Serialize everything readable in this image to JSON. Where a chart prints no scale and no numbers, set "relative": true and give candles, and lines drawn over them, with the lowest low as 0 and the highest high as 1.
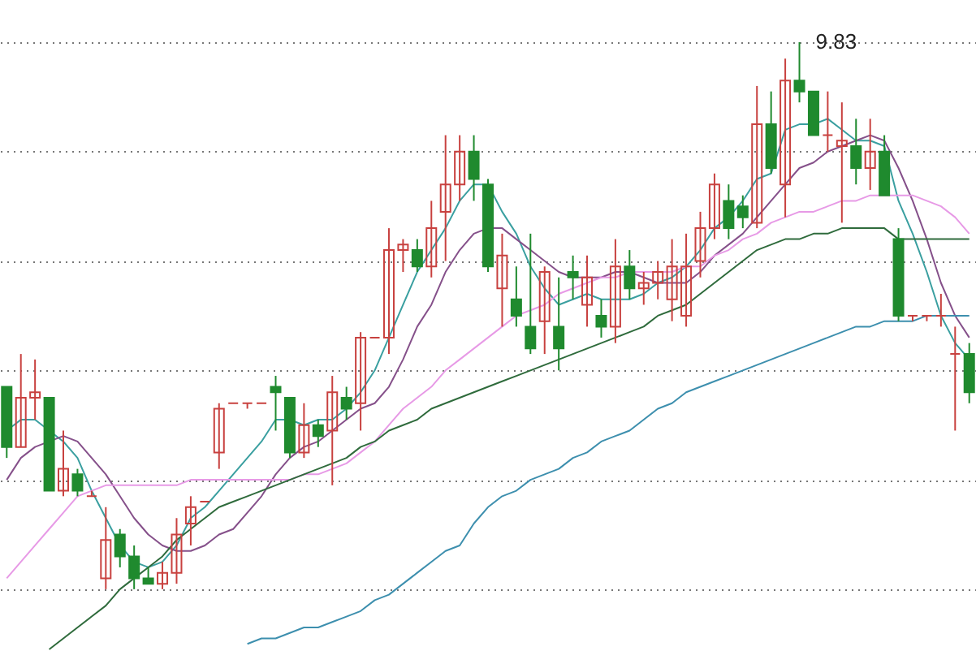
{
  "chart_data": {
    "type": "candlestick",
    "relative": true,
    "grid": true,
    "tick_labels": false,
    "categories": [
      null,
      null,
      null,
      null,
      null,
      null,
      null,
      null,
      null,
      null,
      null,
      null,
      null,
      null,
      null,
      null,
      null,
      null,
      null,
      null,
      null,
      null,
      null,
      null,
      null,
      null,
      null,
      null,
      null,
      null,
      null,
      null,
      null,
      null,
      null,
      null,
      null,
      null,
      null,
      null,
      null,
      null,
      null,
      null,
      null,
      null,
      null,
      null,
      null,
      null,
      null,
      null,
      null,
      null,
      null,
      null,
      null,
      null,
      null,
      null,
      null,
      null,
      null,
      null,
      null,
      null,
      null,
      null,
      null
    ],
    "ohlc": [
      [
        0.37,
        0.37,
        0.24,
        0.26
      ],
      [
        0.26,
        0.43,
        0.26,
        0.35
      ],
      [
        0.35,
        0.42,
        0.31,
        0.36
      ],
      [
        0.35,
        0.35,
        0.18,
        0.18
      ],
      [
        0.18,
        0.29,
        0.17,
        0.22
      ],
      [
        0.21,
        0.22,
        0.17,
        0.18
      ],
      [
        0.17,
        0.18,
        0.17,
        0.17
      ],
      [
        0.02,
        0.15,
        0.0,
        0.09
      ],
      [
        0.1,
        0.11,
        0.04,
        0.06
      ],
      [
        0.06,
        0.08,
        0.0,
        0.02
      ],
      [
        0.02,
        0.04,
        0.01,
        0.01
      ],
      [
        0.01,
        0.05,
        0.0,
        0.03
      ],
      [
        0.03,
        0.13,
        0.01,
        0.1
      ],
      [
        0.12,
        0.17,
        0.08,
        0.15
      ],
      [
        0.16,
        0.16,
        0.16,
        0.16
      ],
      [
        0.25,
        0.34,
        0.22,
        0.33
      ],
      [
        0.34,
        0.34,
        0.34,
        0.34
      ],
      [
        0.34,
        0.34,
        0.33,
        0.34
      ],
      [
        0.34,
        0.34,
        0.34,
        0.34
      ],
      [
        0.37,
        0.39,
        0.29,
        0.36
      ],
      [
        0.35,
        0.35,
        0.24,
        0.25
      ],
      [
        0.25,
        0.34,
        0.24,
        0.3
      ],
      [
        0.3,
        0.31,
        0.26,
        0.28
      ],
      [
        0.29,
        0.39,
        0.19,
        0.36
      ],
      [
        0.35,
        0.37,
        0.31,
        0.33
      ],
      [
        0.34,
        0.47,
        0.29,
        0.46
      ],
      [
        0.46,
        0.46,
        0.46,
        0.46
      ],
      [
        0.46,
        0.66,
        0.43,
        0.62
      ],
      [
        0.62,
        0.64,
        0.58,
        0.63
      ],
      [
        0.62,
        0.64,
        0.58,
        0.59
      ],
      [
        0.59,
        0.71,
        0.57,
        0.66
      ],
      [
        0.69,
        0.83,
        0.6,
        0.74
      ],
      [
        0.74,
        0.83,
        0.71,
        0.8
      ],
      [
        0.8,
        0.83,
        0.71,
        0.75
      ],
      [
        0.74,
        0.75,
        0.58,
        0.59
      ],
      [
        0.55,
        0.65,
        0.48,
        0.61
      ],
      [
        0.53,
        0.59,
        0.48,
        0.5
      ],
      [
        0.48,
        0.65,
        0.43,
        0.44
      ],
      [
        0.49,
        0.59,
        0.43,
        0.58
      ],
      [
        0.48,
        0.57,
        0.4,
        0.44
      ],
      [
        0.58,
        0.61,
        0.53,
        0.57
      ],
      [
        0.52,
        0.61,
        0.48,
        0.57
      ],
      [
        0.5,
        0.53,
        0.46,
        0.48
      ],
      [
        0.48,
        0.64,
        0.45,
        0.59
      ],
      [
        0.59,
        0.62,
        0.53,
        0.55
      ],
      [
        0.55,
        0.58,
        0.52,
        0.56
      ],
      [
        0.56,
        0.6,
        0.53,
        0.58
      ],
      [
        0.53,
        0.64,
        0.49,
        0.59
      ],
      [
        0.5,
        0.65,
        0.48,
        0.59
      ],
      [
        0.6,
        0.69,
        0.57,
        0.66
      ],
      [
        0.66,
        0.76,
        0.64,
        0.74
      ],
      [
        0.71,
        0.74,
        0.64,
        0.66
      ],
      [
        0.7,
        0.72,
        0.66,
        0.68
      ],
      [
        0.67,
        0.92,
        0.66,
        0.85
      ],
      [
        0.85,
        0.91,
        0.76,
        0.77
      ],
      [
        0.74,
        0.97,
        0.68,
        0.93
      ],
      [
        0.93,
        1.0,
        0.89,
        0.91
      ],
      [
        0.91,
        0.91,
        0.83,
        0.83
      ],
      [
        0.83,
        0.91,
        0.8,
        0.83
      ],
      [
        0.81,
        0.89,
        0.67,
        0.82
      ],
      [
        0.81,
        0.86,
        0.74,
        0.77
      ],
      [
        0.77,
        0.86,
        0.73,
        0.8
      ],
      [
        0.8,
        0.83,
        0.72,
        0.72
      ],
      [
        0.64,
        0.66,
        0.49,
        0.5
      ],
      [
        0.5,
        0.5,
        0.49,
        0.5
      ],
      [
        0.5,
        0.5,
        0.49,
        0.5
      ],
      [
        0.5,
        0.54,
        0.48,
        0.5
      ],
      [
        0.43,
        0.48,
        0.29,
        0.43
      ],
      [
        0.43,
        0.45,
        0.34,
        0.36
      ]
    ],
    "colors": [
      "#1f8a2e",
      "#c8413f",
      "#c8413f",
      "#1f8a2e",
      "#c8413f",
      "#1f8a2e",
      "#c8413f",
      "#c8413f",
      "#1f8a2e",
      "#1f8a2e",
      "#1f8a2e",
      "#c8413f",
      "#c8413f",
      "#c8413f",
      "#c8413f",
      "#c8413f",
      "#c8413f",
      "#c8413f",
      "#c8413f",
      "#1f8a2e",
      "#1f8a2e",
      "#c8413f",
      "#1f8a2e",
      "#c8413f",
      "#1f8a2e",
      "#c8413f",
      "#c8413f",
      "#c8413f",
      "#c8413f",
      "#1f8a2e",
      "#c8413f",
      "#c8413f",
      "#c8413f",
      "#1f8a2e",
      "#1f8a2e",
      "#c8413f",
      "#1f8a2e",
      "#1f8a2e",
      "#c8413f",
      "#1f8a2e",
      "#1f8a2e",
      "#c8413f",
      "#1f8a2e",
      "#c8413f",
      "#1f8a2e",
      "#c8413f",
      "#c8413f",
      "#c8413f",
      "#c8413f",
      "#c8413f",
      "#c8413f",
      "#1f8a2e",
      "#1f8a2e",
      "#c8413f",
      "#1f8a2e",
      "#c8413f",
      "#1f8a2e",
      "#1f8a2e",
      "#c8413f",
      "#c8413f",
      "#1f8a2e",
      "#c8413f",
      "#1f8a2e",
      "#1f8a2e",
      "#c8413f",
      "#c8413f",
      "#c8413f",
      "#c8413f",
      "#1f8a2e"
    ],
    "series": [
      {
        "type": "line",
        "color": "#3a9fa0",
        "values": [
          0.29,
          0.31,
          0.31,
          0.29,
          0.27,
          0.24,
          0.18,
          0.13,
          0.08,
          0.05,
          0.04,
          0.05,
          0.08,
          0.13,
          0.15,
          0.18,
          0.21,
          0.24,
          0.27,
          0.31,
          0.31,
          0.3,
          0.31,
          0.31,
          0.33,
          0.36,
          0.4,
          0.46,
          0.52,
          0.58,
          0.62,
          0.66,
          0.71,
          0.74,
          0.74,
          0.69,
          0.65,
          0.59,
          0.55,
          0.52,
          0.53,
          0.54,
          0.53,
          0.53,
          0.53,
          0.54,
          0.56,
          0.57,
          0.59,
          0.62,
          0.66,
          0.68,
          0.71,
          0.75,
          0.76,
          0.84,
          0.85,
          0.85,
          0.86,
          0.84,
          0.82,
          0.82,
          0.81,
          0.71,
          0.65,
          0.58,
          0.5,
          0.45,
          0.42
        ]
      },
      {
        "type": "line",
        "color": "#85508a",
        "values": [
          0.2,
          0.24,
          0.26,
          0.27,
          0.28,
          0.27,
          0.24,
          0.21,
          0.17,
          0.13,
          0.1,
          0.08,
          0.07,
          0.07,
          0.08,
          0.1,
          0.11,
          0.14,
          0.17,
          0.21,
          0.24,
          0.26,
          0.27,
          0.29,
          0.31,
          0.33,
          0.34,
          0.37,
          0.42,
          0.48,
          0.52,
          0.58,
          0.62,
          0.65,
          0.66,
          0.66,
          0.64,
          0.62,
          0.6,
          0.58,
          0.57,
          0.57,
          0.57,
          0.58,
          0.58,
          0.57,
          0.56,
          0.56,
          0.56,
          0.58,
          0.61,
          0.63,
          0.65,
          0.68,
          0.71,
          0.74,
          0.77,
          0.78,
          0.8,
          0.81,
          0.82,
          0.83,
          0.82,
          0.77,
          0.71,
          0.64,
          0.56,
          0.5,
          0.46
        ]
      },
      {
        "type": "line",
        "color": "#e79ae6",
        "values": [
          0.02,
          0.05,
          0.08,
          0.11,
          0.14,
          0.17,
          0.18,
          0.19,
          0.19,
          0.19,
          0.19,
          0.19,
          0.19,
          0.2,
          0.2,
          0.2,
          0.2,
          0.2,
          0.2,
          0.2,
          0.2,
          0.21,
          0.21,
          0.22,
          0.23,
          0.25,
          0.27,
          0.3,
          0.33,
          0.35,
          0.37,
          0.4,
          0.42,
          0.44,
          0.46,
          0.48,
          0.5,
          0.51,
          0.52,
          0.54,
          0.55,
          0.56,
          0.57,
          0.57,
          0.58,
          0.58,
          0.58,
          0.58,
          0.59,
          0.59,
          0.61,
          0.62,
          0.64,
          0.65,
          0.67,
          0.68,
          0.69,
          0.69,
          0.7,
          0.71,
          0.71,
          0.72,
          0.72,
          0.72,
          0.72,
          0.71,
          0.7,
          0.68,
          0.65
        ]
      },
      {
        "type": "line",
        "color": "#2f6b3c",
        "values": [
          null,
          null,
          null,
          -0.11,
          -0.09,
          -0.07,
          -0.05,
          -0.03,
          0.0,
          0.02,
          0.04,
          0.06,
          0.09,
          0.11,
          0.13,
          0.15,
          0.16,
          0.17,
          0.18,
          0.19,
          0.2,
          0.21,
          0.22,
          0.23,
          0.24,
          0.26,
          0.27,
          0.29,
          0.3,
          0.31,
          0.33,
          0.34,
          0.35,
          0.36,
          0.37,
          0.38,
          0.39,
          0.4,
          0.41,
          0.42,
          0.43,
          0.44,
          0.45,
          0.46,
          0.47,
          0.48,
          0.5,
          0.51,
          0.52,
          0.54,
          0.56,
          0.58,
          0.6,
          0.62,
          0.63,
          0.64,
          0.64,
          0.65,
          0.65,
          0.66,
          0.66,
          0.66,
          0.66,
          0.64,
          0.64,
          0.64,
          0.64,
          0.64,
          0.64
        ]
      },
      {
        "type": "line",
        "color": "#3d8fae",
        "values": [
          null,
          null,
          null,
          null,
          null,
          null,
          null,
          null,
          null,
          null,
          null,
          null,
          null,
          null,
          null,
          null,
          null,
          -0.1,
          -0.09,
          -0.09,
          -0.08,
          -0.07,
          -0.07,
          -0.06,
          -0.05,
          -0.04,
          -0.02,
          -0.01,
          0.01,
          0.03,
          0.05,
          0.07,
          0.08,
          0.12,
          0.15,
          0.17,
          0.18,
          0.2,
          0.21,
          0.22,
          0.24,
          0.25,
          0.27,
          0.28,
          0.29,
          0.31,
          0.33,
          0.34,
          0.36,
          0.37,
          0.38,
          0.39,
          0.4,
          0.41,
          0.42,
          0.43,
          0.44,
          0.45,
          0.46,
          0.47,
          0.48,
          0.48,
          0.49,
          0.49,
          0.49,
          0.5,
          0.5,
          0.5,
          0.5
        ]
      }
    ],
    "annotations": [
      "9.83"
    ]
  }
}
